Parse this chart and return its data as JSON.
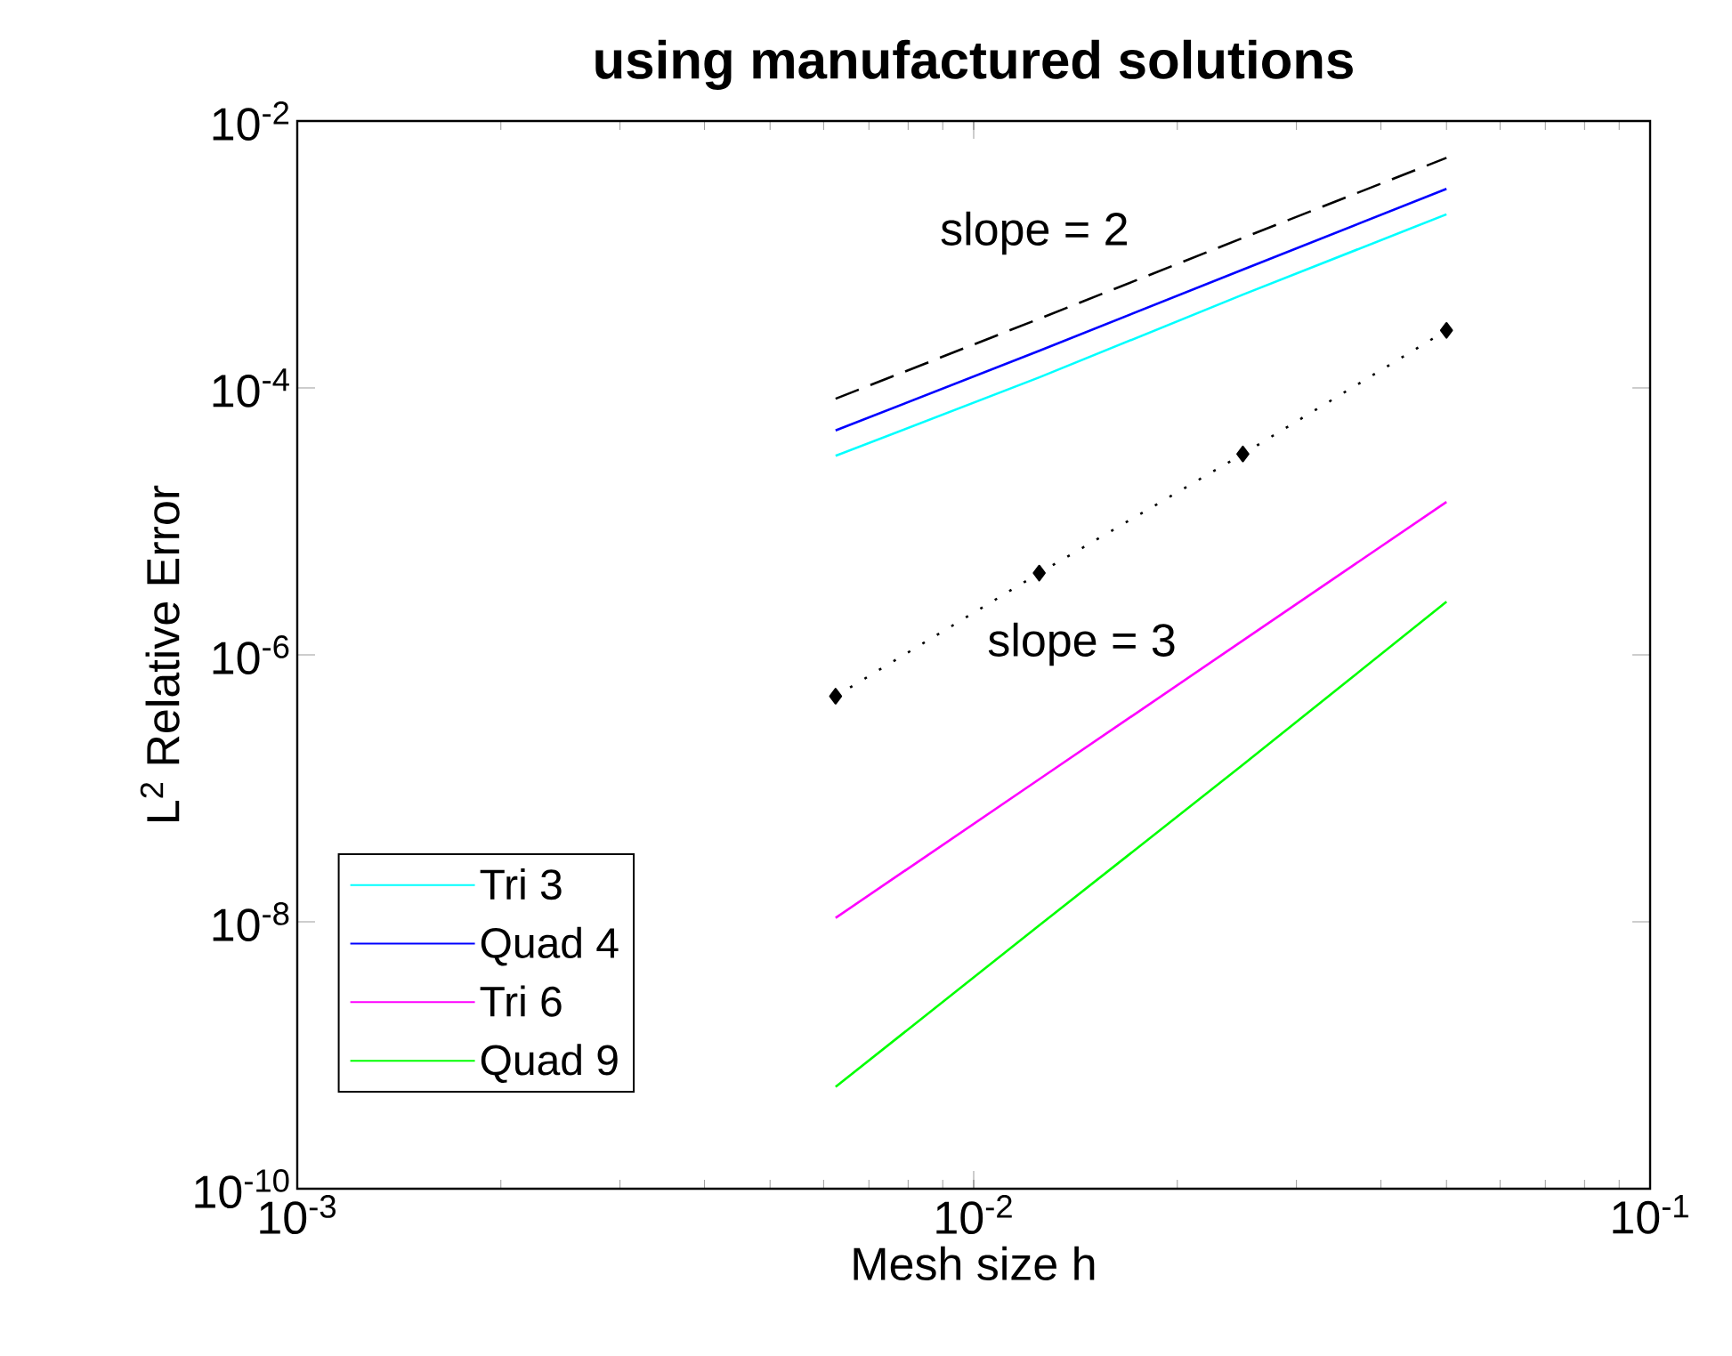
{
  "chart_data": {
    "type": "line",
    "title": "using manufactured solutions",
    "xlabel": "Mesh size h",
    "ylabel": "L$^{2}$ Relative Error",
    "x": [
      0.00625,
      0.0125,
      0.025,
      0.05
    ],
    "series": [
      {
        "name": "Tri 3",
        "color": "#00ffff",
        "values": [
          3.1e-05,
          0.00012,
          0.0005,
          0.002
        ]
      },
      {
        "name": "Quad 4",
        "color": "#0000ff",
        "values": [
          4.8e-05,
          0.00019,
          0.00077,
          0.0031
        ]
      },
      {
        "name": "Tri 6",
        "color": "#ff00ff",
        "values": [
          1.07e-08,
          1.17e-07,
          1.28e-06,
          1.4e-05
        ]
      },
      {
        "name": "Quad 9",
        "color": "#00ff00",
        "values": [
          5.8e-10,
          9.4e-09,
          1.5e-07,
          2.5e-06
        ]
      },
      {
        "color": "#000000",
        "line_style": "dashed",
        "values": [
          8.3e-05,
          0.00033,
          0.00133,
          0.0053
        ]
      },
      {
        "color": "#000000",
        "line_style": "dotted",
        "marker": "diamond",
        "values": [
          4.9e-07,
          4.1e-06,
          3.2e-05,
          0.00027
        ]
      }
    ],
    "xlim": [
      0.001,
      0.1
    ],
    "ylim": [
      1e-10,
      0.01
    ],
    "log": "xy",
    "xticks": [
      {
        "value": 0.001,
        "label": "10$^{-3}$"
      },
      {
        "value": 0.01,
        "label": "10$^{-2}$"
      },
      {
        "value": 0.1,
        "label": "10$^{-1}$"
      }
    ],
    "yticks": [
      {
        "value": 1e-10,
        "label": "10$^{-10}$"
      },
      {
        "value": 1e-08,
        "label": "10$^{-8}$"
      },
      {
        "value": 1e-06,
        "label": "10$^{-6}$"
      },
      {
        "value": 0.0001,
        "label": "10$^{-4}$"
      },
      {
        "value": 0.01,
        "label": "10$^{-2}$"
      }
    ],
    "annotations": [
      "slope = 2",
      "slope = 3"
    ],
    "legend": "bottom left",
    "grid": false
  }
}
